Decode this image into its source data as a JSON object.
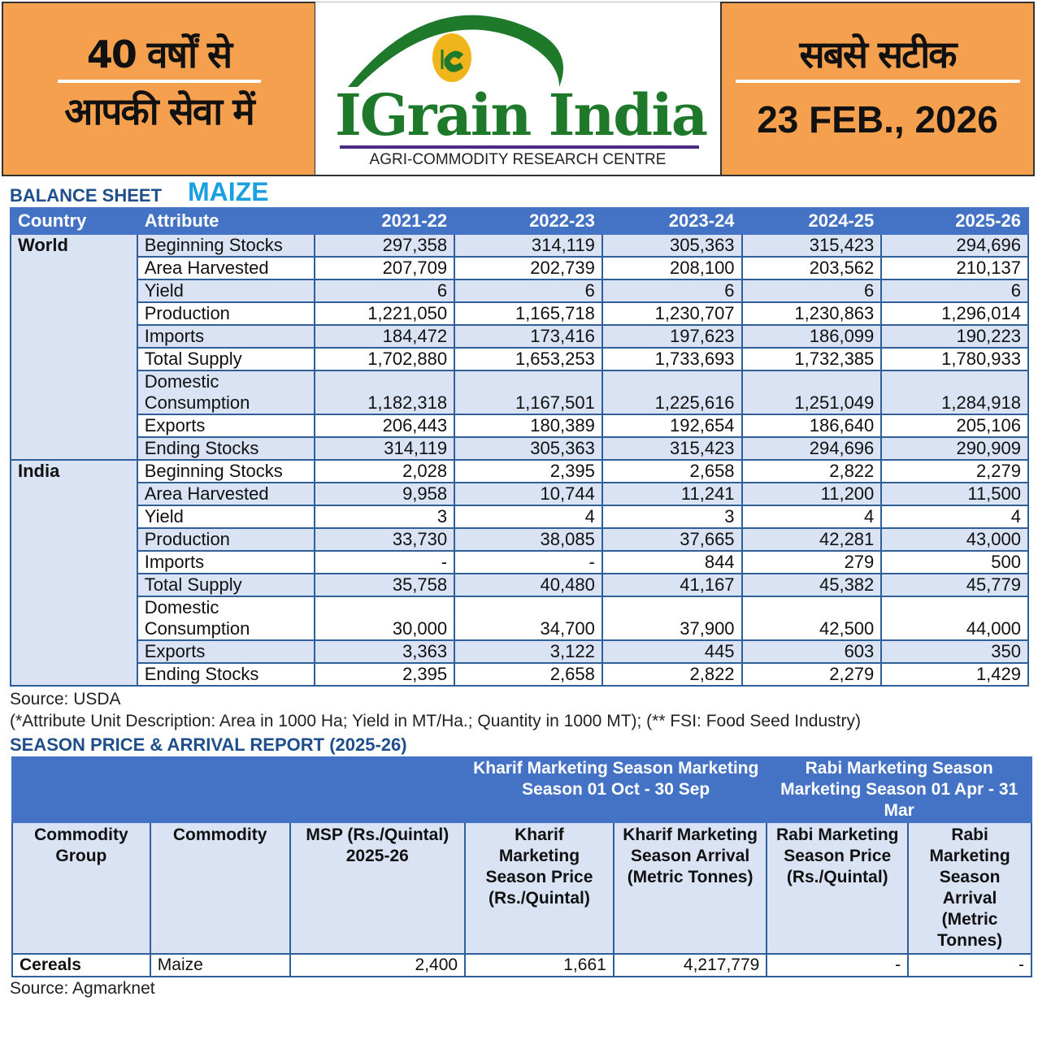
{
  "header": {
    "left_line1": "40 वर्षों से",
    "left_line2": "आपकी सेवा में",
    "right_line1": "सबसे सटीक",
    "date": "23 FEB., 2026",
    "brand": "IGrain India",
    "brand_sub": "AGRI-COMMODITY RESEARCH CENTRE",
    "logo_letters": "IG",
    "watermark": "IGrain India"
  },
  "colors": {
    "orange": "#f5a04e",
    "header_blue": "#4472c4",
    "row_blue": "#dae3f3",
    "brand_green": "#1e7a2a"
  },
  "balance": {
    "label": "BALANCE SHEET",
    "commodity": "MAIZE",
    "columns": [
      "Country",
      "Attribute",
      "2021-22",
      "2022-23",
      "2023-24",
      "2024-25",
      "2025-26"
    ],
    "groups": [
      {
        "country": "World",
        "rows": [
          [
            "Beginning Stocks",
            "297,358",
            "314,119",
            "305,363",
            "315,423",
            "294,696"
          ],
          [
            "Area Harvested",
            "207,709",
            "202,739",
            "208,100",
            "203,562",
            "210,137"
          ],
          [
            "Yield",
            "6",
            "6",
            "6",
            "6",
            "6"
          ],
          [
            "Production",
            "1,221,050",
            "1,165,718",
            "1,230,707",
            "1,230,863",
            "1,296,014"
          ],
          [
            "Imports",
            "184,472",
            "173,416",
            "197,623",
            "186,099",
            "190,223"
          ],
          [
            "Total Supply",
            "1,702,880",
            "1,653,253",
            "1,733,693",
            "1,732,385",
            "1,780,933"
          ],
          [
            "Domestic Consumption",
            "1,182,318",
            "1,167,501",
            "1,225,616",
            "1,251,049",
            "1,284,918"
          ],
          [
            "Exports",
            "206,443",
            "180,389",
            "192,654",
            "186,640",
            "205,106"
          ],
          [
            "Ending Stocks",
            "314,119",
            "305,363",
            "315,423",
            "294,696",
            "290,909"
          ]
        ]
      },
      {
        "country": "India",
        "rows": [
          [
            "Beginning Stocks",
            "2,028",
            "2,395",
            "2,658",
            "2,822",
            "2,279"
          ],
          [
            "Area Harvested",
            "9,958",
            "10,744",
            "11,241",
            "11,200",
            "11,500"
          ],
          [
            "Yield",
            "3",
            "4",
            "3",
            "4",
            "4"
          ],
          [
            "Production",
            "33,730",
            "38,085",
            "37,665",
            "42,281",
            "43,000"
          ],
          [
            "Imports",
            "-",
            "-",
            "844",
            "279",
            "500"
          ],
          [
            "Total Supply",
            "35,758",
            "40,480",
            "41,167",
            "45,382",
            "45,779"
          ],
          [
            "Domestic Consumption",
            "30,000",
            "34,700",
            "37,900",
            "42,500",
            "44,000"
          ],
          [
            "Exports",
            "3,363",
            "3,122",
            "445",
            "603",
            "350"
          ],
          [
            "Ending Stocks",
            "2,395",
            "2,658",
            "2,822",
            "2,279",
            "1,429"
          ]
        ]
      }
    ],
    "source": "Source: USDA",
    "unit_note": "(*Attribute Unit Description: Area in 1000 Ha; Yield in MT/Ha.; Quantity in 1000 MT); (** FSI: Food Seed Industry)"
  },
  "season": {
    "title": "SEASON PRICE & ARRIVAL REPORT (2025-26)",
    "kharif_header": "Kharif Marketing Season Marketing Season 01 Oct - 30 Sep",
    "rabi_header": "Rabi Marketing Season Marketing Season 01 Apr - 31 Mar",
    "columns": [
      "Commodity Group",
      "Commodity",
      "MSP (Rs./Quintal) 2025-26",
      "Kharif Marketing Season Price (Rs./Quintal)",
      "Kharif Marketing Season Arrival (Metric Tonnes)",
      "Rabi Marketing Season Price (Rs./Quintal)",
      "Rabi Marketing Season Arrival (Metric Tonnes)"
    ],
    "row": [
      "Cereals",
      "Maize",
      "2,400",
      "1,661",
      "4,217,779",
      "-",
      "-"
    ],
    "source": "Source: Agmarknet"
  }
}
